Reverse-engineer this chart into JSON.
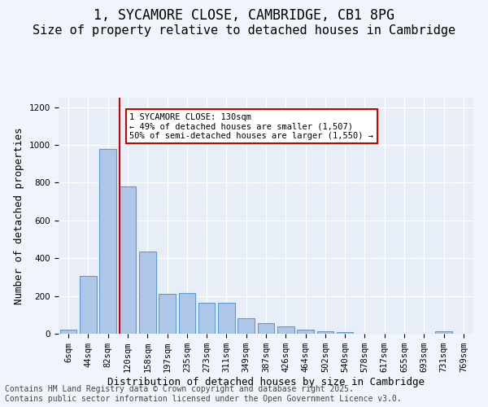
{
  "title1": "1, SYCAMORE CLOSE, CAMBRIDGE, CB1 8PG",
  "title2": "Size of property relative to detached houses in Cambridge",
  "xlabel": "Distribution of detached houses by size in Cambridge",
  "ylabel": "Number of detached properties",
  "categories": [
    "6sqm",
    "44sqm",
    "82sqm",
    "120sqm",
    "158sqm",
    "197sqm",
    "235sqm",
    "273sqm",
    "311sqm",
    "349sqm",
    "387sqm",
    "426sqm",
    "464sqm",
    "502sqm",
    "540sqm",
    "578sqm",
    "617sqm",
    "655sqm",
    "693sqm",
    "731sqm",
    "769sqm"
  ],
  "values": [
    22,
    308,
    980,
    780,
    435,
    210,
    215,
    165,
    165,
    80,
    55,
    38,
    20,
    15,
    10,
    0,
    0,
    0,
    0,
    12,
    0
  ],
  "bar_color": "#aec6e8",
  "bar_edge_color": "#5b9bd5",
  "vline_x": 3,
  "vline_color": "#cc0000",
  "annotation_text": "1 SYCAMORE CLOSE: 130sqm\n← 49% of detached houses are smaller (1,507)\n50% of semi-detached houses are larger (1,550) →",
  "annotation_box_color": "#ffffff",
  "annotation_box_edge_color": "#cc0000",
  "background_color": "#e8eef7",
  "plot_bg_color": "#e8eef7",
  "ylim": [
    0,
    1250
  ],
  "yticks": [
    0,
    200,
    400,
    600,
    800,
    1000,
    1200
  ],
  "footer_text": "Contains HM Land Registry data © Crown copyright and database right 2025.\nContains public sector information licensed under the Open Government Licence v3.0.",
  "title_fontsize": 12,
  "subtitle_fontsize": 11,
  "axis_label_fontsize": 9,
  "tick_fontsize": 7.5,
  "footer_fontsize": 7
}
